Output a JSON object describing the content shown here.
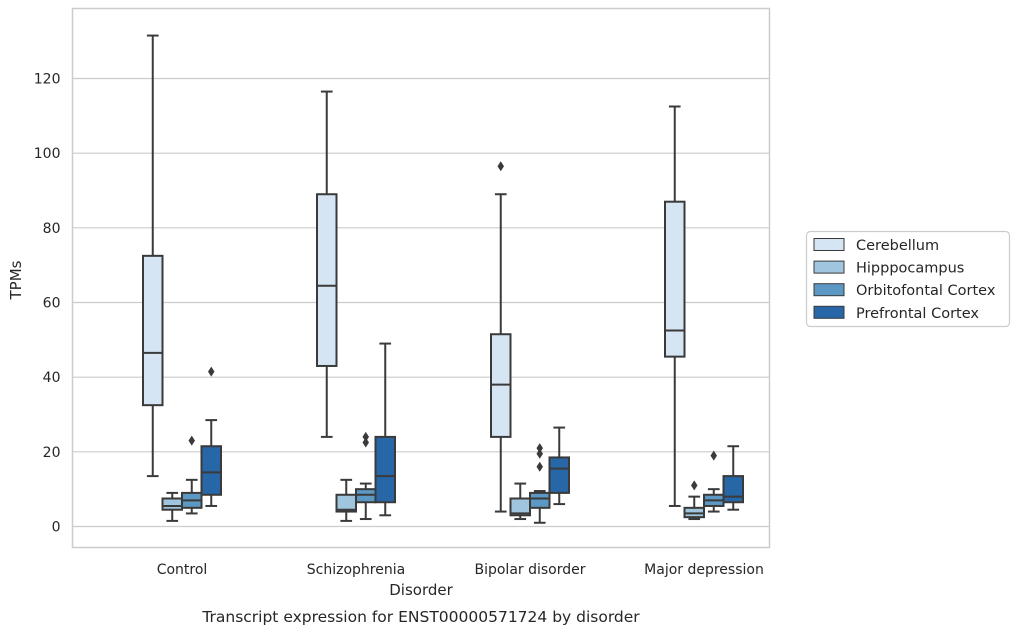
{
  "caption": "Transcript expression for ENST00000571724 by disorder",
  "chart_data": {
    "type": "box",
    "title": "",
    "xlabel": "Disorder",
    "ylabel": "TPMs",
    "ylim": [
      -5.5,
      138
    ],
    "yticks": [
      0,
      20,
      40,
      60,
      80,
      100,
      120
    ],
    "grid": true,
    "legend_position": "right",
    "categories": [
      "Control",
      "Schizophrenia",
      "Bipolar disorder",
      "Major depression"
    ],
    "series": [
      {
        "name": "Cerebellum",
        "color": "#d6e5f3",
        "boxes": [
          {
            "whislo": 13.5,
            "q1": 32.5,
            "med": 46.5,
            "q3": 72.5,
            "whishi": 131.5,
            "fliers": []
          },
          {
            "whislo": 24,
            "q1": 43,
            "med": 64.5,
            "q3": 89,
            "whishi": 116.5,
            "fliers": []
          },
          {
            "whislo": 4,
            "q1": 24,
            "med": 38,
            "q3": 51.5,
            "whishi": 89,
            "fliers": [
              96.5
            ]
          },
          {
            "whislo": 5.5,
            "q1": 45.5,
            "med": 52.5,
            "q3": 87,
            "whishi": 112.5,
            "fliers": []
          }
        ]
      },
      {
        "name": "Hipppocampus",
        "color": "#a0c6df",
        "boxes": [
          {
            "whislo": 1.5,
            "q1": 4.5,
            "med": 5.5,
            "q3": 7.5,
            "whishi": 9,
            "fliers": []
          },
          {
            "whislo": 1.5,
            "q1": 4,
            "med": 4.5,
            "q3": 8.5,
            "whishi": 12.5,
            "fliers": []
          },
          {
            "whislo": 2,
            "q1": 3,
            "med": 3.5,
            "q3": 7.5,
            "whishi": 11.5,
            "fliers": []
          },
          {
            "whislo": 2,
            "q1": 2.5,
            "med": 3.5,
            "q3": 5,
            "whishi": 8,
            "fliers": [
              11
            ]
          }
        ]
      },
      {
        "name": "Orbitofontal Cortex",
        "color": "#5b98c4",
        "boxes": [
          {
            "whislo": 3.5,
            "q1": 5,
            "med": 7,
            "q3": 9,
            "whishi": 12.5,
            "fliers": [
              23
            ]
          },
          {
            "whislo": 2,
            "q1": 6.5,
            "med": 8.5,
            "q3": 10,
            "whishi": 11.5,
            "fliers": [
              22.5,
              24
            ]
          },
          {
            "whislo": 1,
            "q1": 5,
            "med": 7.5,
            "q3": 9,
            "whishi": 9.5,
            "fliers": [
              16,
              19.5,
              21
            ]
          },
          {
            "whislo": 4,
            "q1": 5.5,
            "med": 7,
            "q3": 8.5,
            "whishi": 10,
            "fliers": [
              19
            ]
          }
        ]
      },
      {
        "name": "Prefrontal Cortex",
        "color": "#2766a7",
        "boxes": [
          {
            "whislo": 5.5,
            "q1": 8.5,
            "med": 14.5,
            "q3": 21.5,
            "whishi": 28.5,
            "fliers": [
              41.5
            ]
          },
          {
            "whislo": 3,
            "q1": 6.5,
            "med": 13.5,
            "q3": 24,
            "whishi": 49,
            "fliers": []
          },
          {
            "whislo": 6,
            "q1": 9,
            "med": 15.5,
            "q3": 18.5,
            "whishi": 26.5,
            "fliers": []
          },
          {
            "whislo": 4.5,
            "q1": 6.5,
            "med": 8,
            "q3": 13.5,
            "whishi": 21.5,
            "fliers": []
          }
        ]
      }
    ]
  }
}
